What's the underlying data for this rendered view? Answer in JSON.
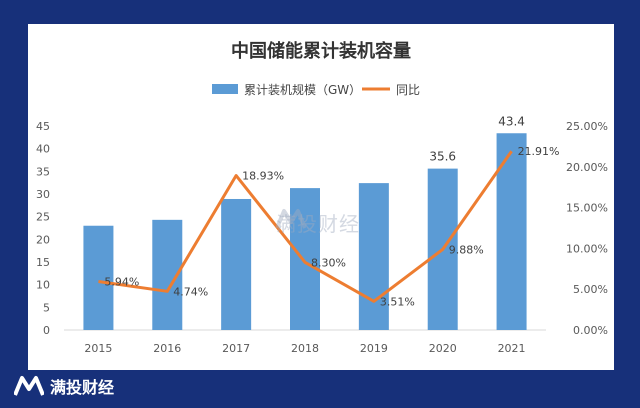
{
  "chart_data": {
    "type": "bar+line",
    "title": "中国储能累计装机容量",
    "categories": [
      "2015",
      "2016",
      "2017",
      "2018",
      "2019",
      "2020",
      "2021"
    ],
    "series": [
      {
        "name": "累计装机规模（GW）",
        "type": "bar",
        "axis": "left",
        "color": "#5b9bd5",
        "values": [
          23.0,
          24.3,
          28.9,
          31.3,
          32.4,
          35.6,
          43.4
        ],
        "data_labels": [
          "",
          "",
          "",
          "",
          "",
          "35.6",
          "43.4"
        ]
      },
      {
        "name": "同比",
        "type": "line",
        "axis": "right",
        "color": "#ed7d31",
        "values": [
          5.94,
          4.74,
          18.93,
          8.3,
          3.51,
          9.88,
          21.91
        ],
        "data_labels": [
          "5.94%",
          "4.74%",
          "18.93%",
          "8.30%",
          "3.51%",
          "9.88%",
          "21.91%"
        ]
      }
    ],
    "y_left": {
      "range": [
        0,
        45
      ],
      "ticks": [
        "0",
        "5",
        "10",
        "15",
        "20",
        "25",
        "30",
        "35",
        "40",
        "45"
      ]
    },
    "y_right": {
      "range": [
        0,
        25
      ],
      "ticks": [
        "0.00%",
        "5.00%",
        "10.00%",
        "15.00%",
        "20.00%",
        "25.00%"
      ]
    },
    "grid": false,
    "legend": "top-center"
  },
  "watermark_text": "满投财经",
  "brand_text": "满投财经"
}
